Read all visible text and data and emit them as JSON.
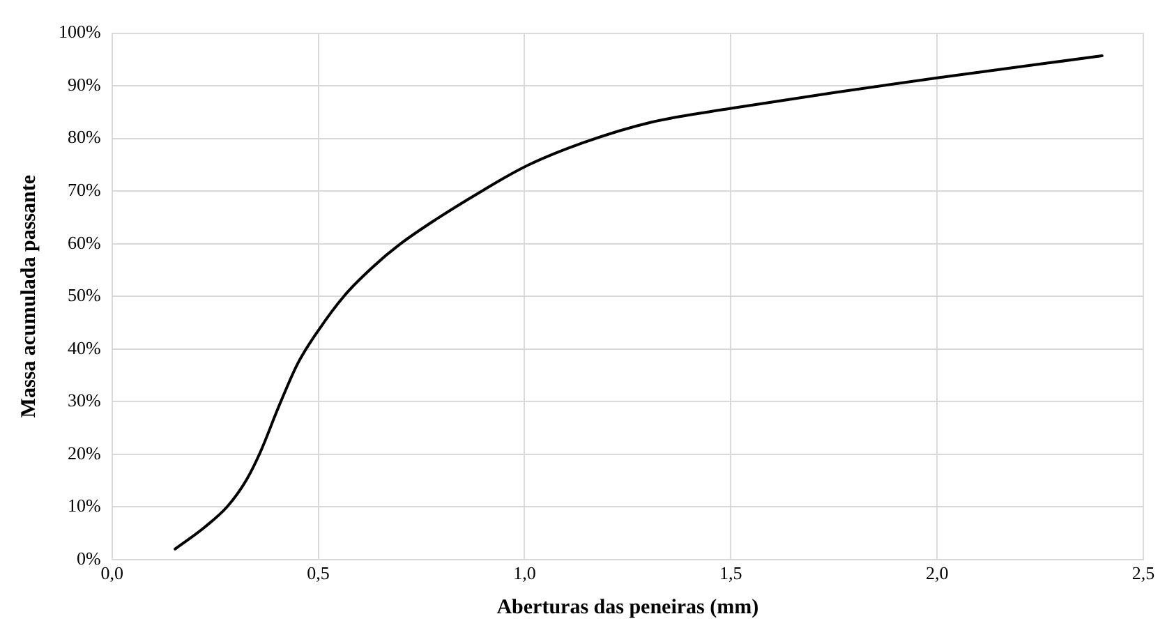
{
  "chart_data": {
    "type": "line",
    "xlabel": "Aberturas das peneiras (mm)",
    "ylabel": "Massa acumulada passante",
    "x": [
      0.153,
      0.224,
      0.28,
      0.325,
      0.359,
      0.405,
      0.45,
      0.5,
      0.563,
      0.631,
      0.698,
      0.789,
      0.89,
      1.0,
      1.139,
      1.308,
      1.5,
      1.749,
      2.0,
      2.4
    ],
    "series": [
      {
        "color": "#000000",
        "values": [
          2.0,
          6.1,
          10.1,
          15.0,
          20.3,
          29.2,
          37.2,
          43.5,
          50.1,
          55.5,
          59.9,
          64.8,
          69.7,
          74.6,
          79.1,
          83.1,
          85.7,
          88.7,
          91.5,
          95.7
        ]
      }
    ],
    "xlim": [
      0,
      2.5
    ],
    "xticks": [
      {
        "value": 0,
        "label": "0,0"
      },
      {
        "value": 0.5,
        "label": "0,5"
      },
      {
        "value": 1,
        "label": "1,0"
      },
      {
        "value": 1.5,
        "label": "1,5"
      },
      {
        "value": 2,
        "label": "2,0"
      },
      {
        "value": 2.5,
        "label": "2,5"
      }
    ],
    "ylim": [
      0,
      100
    ],
    "yticks": [
      {
        "value": 0,
        "label": "0%"
      },
      {
        "value": 10,
        "label": "10%"
      },
      {
        "value": 20,
        "label": "20%"
      },
      {
        "value": 30,
        "label": "30%"
      },
      {
        "value": 40,
        "label": "40%"
      },
      {
        "value": 50,
        "label": "50%"
      },
      {
        "value": 60,
        "label": "60%"
      },
      {
        "value": 70,
        "label": "70%"
      },
      {
        "value": 80,
        "label": "80%"
      },
      {
        "value": 90,
        "label": "90%"
      },
      {
        "value": 100,
        "label": "100%"
      }
    ],
    "grid": true,
    "legend": false,
    "marker": "none",
    "line_style": "solid"
  }
}
